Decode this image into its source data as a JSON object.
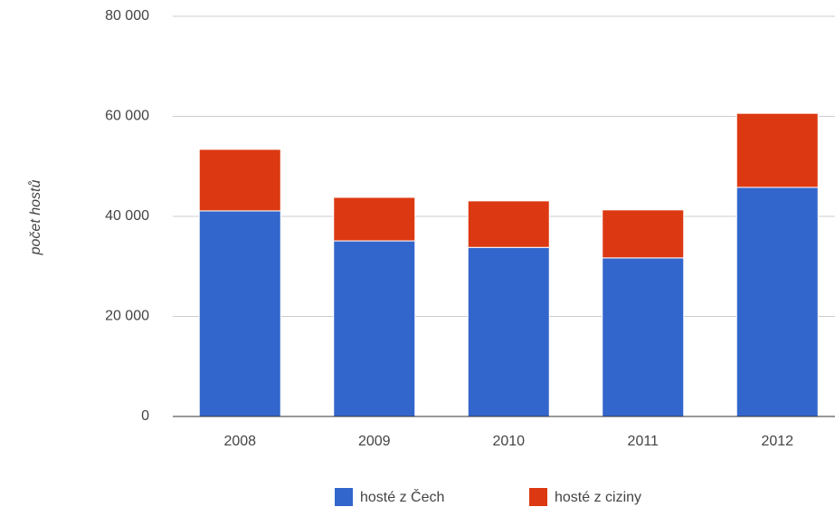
{
  "chart_data": {
    "type": "stacked_bar",
    "categories": [
      "2008",
      "2009",
      "2010",
      "2011",
      "2012"
    ],
    "series": [
      {
        "name": "hosté z Čech",
        "color": "#3366cc",
        "values": [
          41100,
          35100,
          33800,
          31700,
          45800
        ]
      },
      {
        "name": "hosté z ciziny",
        "color": "#dc3912",
        "values": [
          12300,
          8700,
          9300,
          9600,
          14800
        ]
      }
    ],
    "y_label": "počet hostů",
    "ylim": [
      0,
      80000
    ],
    "yticks": [
      {
        "value": 0,
        "label": "0"
      },
      {
        "value": 20000,
        "label": "20 000"
      },
      {
        "value": 40000,
        "label": "40 000"
      },
      {
        "value": 60000,
        "label": "60 000"
      },
      {
        "value": 80000,
        "label": "80 000"
      }
    ],
    "grid": true,
    "legend": "bottom"
  }
}
